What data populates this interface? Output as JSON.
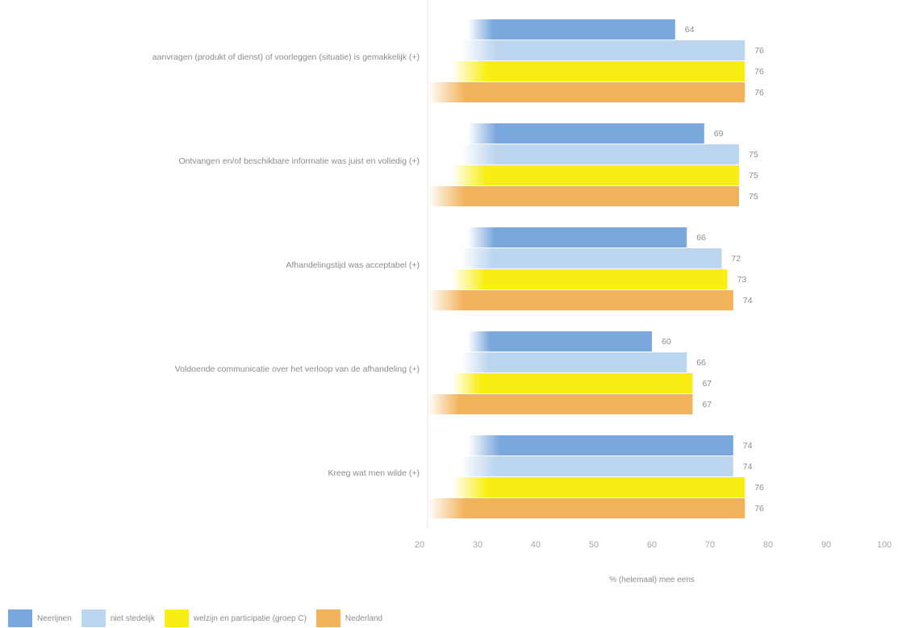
{
  "chart_data": {
    "type": "bar",
    "orientation": "horizontal",
    "categories": [
      "aanvragen (produkt of dienst) of voorleggen (situatie) is gemakkelijk (+)",
      "Ontvangen en/of beschikbare informatie was juist en volledig (+)",
      "Afhandelingstijd was acceptabel (+)",
      "Voldoende communicatie over het verloop van de afhandeling (+)",
      "Kreeg wat men wilde (+)"
    ],
    "series": [
      {
        "name": "Neerijnen",
        "color": "#7aa7dc",
        "values": [
          64,
          69,
          66,
          60,
          74
        ]
      },
      {
        "name": "niet stedelijk",
        "color": "#bdd6f0",
        "values": [
          76,
          75,
          72,
          66,
          74
        ]
      },
      {
        "name": "welzijn en participatie (groep C)",
        "color": "#f8ee14",
        "values": [
          76,
          75,
          73,
          67,
          76
        ]
      },
      {
        "name": "Nederland",
        "color": "#f2b25a",
        "values": [
          76,
          75,
          74,
          67,
          76
        ]
      }
    ],
    "xlabel": "% (helemaal) mee eens",
    "xlim": [
      20,
      100
    ],
    "xticks": [
      "20",
      "30",
      "40",
      "50",
      "60",
      "70",
      "80",
      "90",
      "100"
    ],
    "legend_position": "bottom-left",
    "grid": false
  }
}
